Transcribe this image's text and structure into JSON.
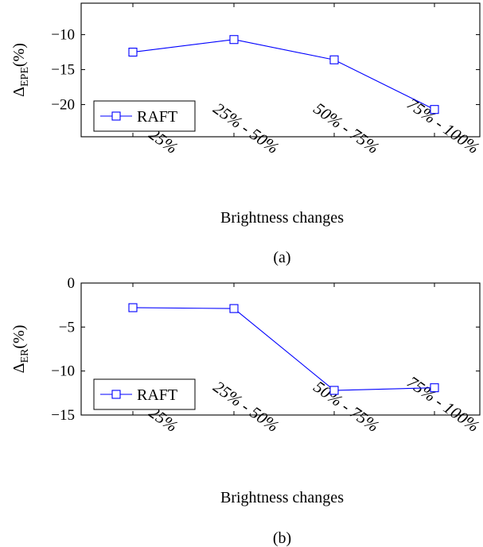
{
  "chart_data": [
    {
      "type": "line",
      "caption": "(a)",
      "categories": [
        "0% - 25%",
        "25% - 50%",
        "50% - 75%",
        "75% - 100%"
      ],
      "series": [
        {
          "name": "RAFT",
          "values": [
            -12.5,
            -10.7,
            -13.6,
            -20.7
          ],
          "color": "#0000ff",
          "marker": "square"
        }
      ],
      "xlabel": "Brightness changes",
      "ylabel_main": "Δ",
      "ylabel_sub": "EPE",
      "ylabel_unit": "(%)",
      "ylim": [
        -24.6,
        -5.5
      ],
      "yticks": [
        -10,
        -15,
        -20
      ],
      "ytick_labels": [
        "−10",
        "−15",
        "−20"
      ],
      "legend_position": "bottom-left"
    },
    {
      "type": "line",
      "caption": "(b)",
      "categories": [
        "0% - 25%",
        "25% - 50%",
        "50% - 75%",
        "75% - 100%"
      ],
      "series": [
        {
          "name": "RAFT",
          "values": [
            -2.8,
            -2.9,
            -12.2,
            -11.9
          ],
          "color": "#0000ff",
          "marker": "square"
        }
      ],
      "xlabel": "Brightness changes",
      "ylabel_main": "Δ",
      "ylabel_sub": "ER",
      "ylabel_unit": "(%)",
      "ylim": [
        -15,
        0
      ],
      "yticks": [
        0,
        -5,
        -10,
        -15
      ],
      "ytick_labels": [
        "0",
        "−5",
        "−10",
        "−15"
      ],
      "legend_position": "bottom-left"
    }
  ]
}
